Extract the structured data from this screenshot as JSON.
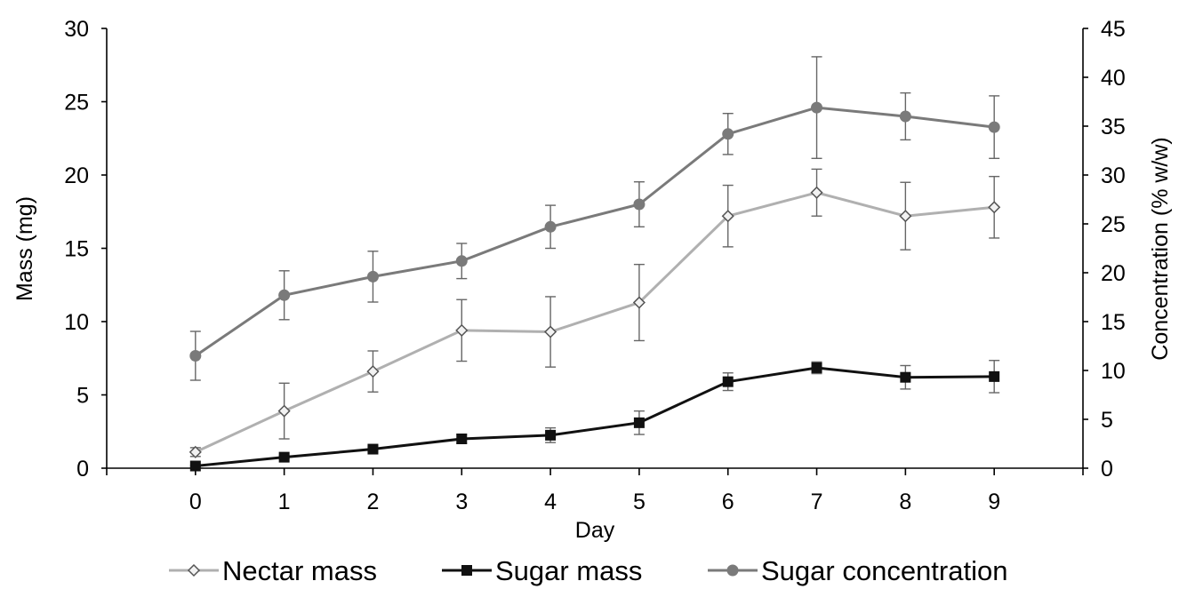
{
  "chart_data": {
    "type": "line",
    "title": "",
    "xlabel": "Day",
    "ylabel": "Mass (mg)",
    "y2label": "Concentration (% w/w)",
    "x": [
      0,
      1,
      2,
      3,
      4,
      5,
      6,
      7,
      8,
      9
    ],
    "x_tick_labels": [
      "0",
      "1",
      "2",
      "3",
      "4",
      "5",
      "6",
      "7",
      "8",
      "9"
    ],
    "xlim": [
      -1,
      10
    ],
    "ylim": [
      0,
      30
    ],
    "y_ticks": [
      0,
      5,
      10,
      15,
      20,
      25,
      30
    ],
    "y2lim": [
      0,
      45
    ],
    "y2_ticks": [
      0,
      5,
      10,
      15,
      20,
      25,
      30,
      35,
      40,
      45
    ],
    "grid": false,
    "legend_position": "bottom",
    "series": [
      {
        "name": "Nectar mass",
        "axis": "left",
        "color": "#b0b0b0",
        "marker": "diamond",
        "values": [
          1.1,
          3.9,
          6.6,
          9.4,
          9.3,
          11.3,
          17.2,
          18.8,
          17.2,
          17.8
        ],
        "error": [
          0.3,
          1.9,
          1.4,
          2.1,
          2.4,
          2.6,
          2.1,
          1.6,
          2.3,
          2.1
        ]
      },
      {
        "name": "Sugar mass",
        "axis": "left",
        "color": "#111111",
        "marker": "square",
        "values": [
          0.15,
          0.75,
          1.3,
          2.0,
          2.25,
          3.1,
          5.9,
          6.85,
          6.2,
          6.25
        ],
        "error": [
          0.05,
          0.1,
          0.2,
          0.3,
          0.5,
          0.8,
          0.6,
          0.4,
          0.8,
          1.1
        ]
      },
      {
        "name": "Sugar concentration",
        "axis": "right",
        "color": "#7a7a7a",
        "marker": "circle",
        "values": [
          11.5,
          17.7,
          19.6,
          21.2,
          24.7,
          27.0,
          34.2,
          36.9,
          36.0,
          34.9
        ],
        "error": [
          2.5,
          2.5,
          2.6,
          1.8,
          2.2,
          2.3,
          2.1,
          5.2,
          2.4,
          3.2
        ]
      }
    ]
  }
}
